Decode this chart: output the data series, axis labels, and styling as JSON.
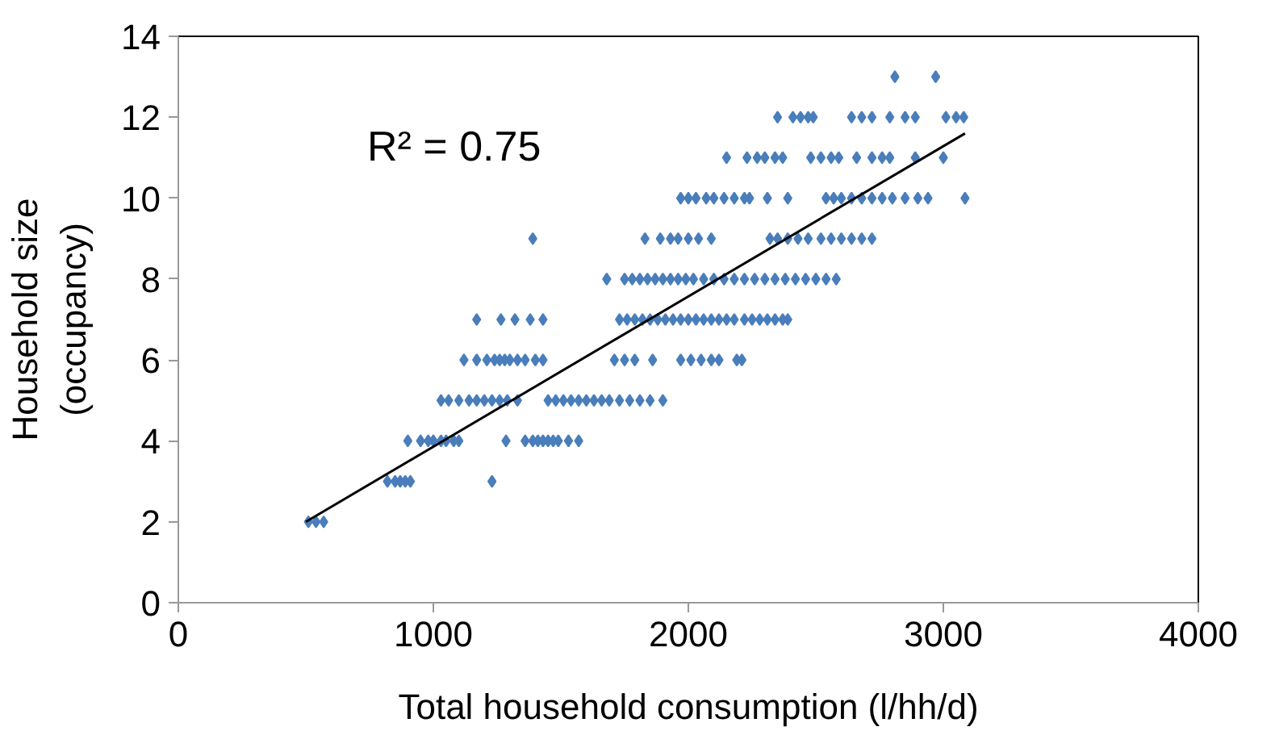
{
  "chart_data": {
    "type": "scatter",
    "xlabel": "Total household consumption (l/hh/d)",
    "ylabel": "Household size\n(occupancy)",
    "xlim": [
      0,
      4000
    ],
    "xticks": [
      0,
      1000,
      2000,
      3000,
      4000
    ],
    "ylim": [
      0,
      14
    ],
    "yticks": [
      0,
      2,
      4,
      6,
      8,
      10,
      12,
      14
    ],
    "grid": false,
    "annotations": [
      "R² = 0.75"
    ],
    "series": [
      {
        "color": "#4a7ebb",
        "marker": "diamond",
        "x": [
          510,
          540,
          570,
          820,
          850,
          870,
          890,
          910,
          1230,
          900,
          950,
          980,
          1000,
          1030,
          1050,
          1080,
          1100,
          1285,
          1360,
          1390,
          1410,
          1430,
          1450,
          1470,
          1490,
          1530,
          1570,
          1030,
          1060,
          1100,
          1140,
          1170,
          1200,
          1230,
          1260,
          1290,
          1330,
          1450,
          1480,
          1510,
          1540,
          1570,
          1600,
          1630,
          1660,
          1690,
          1730,
          1770,
          1810,
          1850,
          1900,
          1120,
          1170,
          1210,
          1240,
          1260,
          1280,
          1300,
          1330,
          1360,
          1400,
          1430,
          1710,
          1750,
          1790,
          1860,
          1970,
          2010,
          2050,
          2090,
          2120,
          2190,
          2210,
          1170,
          1265,
          1320,
          1380,
          1430,
          1730,
          1760,
          1790,
          1820,
          1850,
          1880,
          1910,
          1940,
          1970,
          2000,
          2030,
          2060,
          2090,
          2120,
          2150,
          2180,
          2220,
          2250,
          2280,
          2310,
          2340,
          2370,
          2390,
          1680,
          1750,
          1780,
          1810,
          1840,
          1870,
          1900,
          1930,
          1960,
          1990,
          2020,
          2060,
          2100,
          2140,
          2180,
          2220,
          2260,
          2300,
          2340,
          2380,
          2420,
          2460,
          2500,
          2540,
          2580,
          1390,
          1830,
          1890,
          1930,
          1960,
          2000,
          2040,
          2090,
          2320,
          2350,
          2390,
          2430,
          2470,
          2520,
          2560,
          2600,
          2640,
          2680,
          2720,
          1970,
          2000,
          2030,
          2070,
          2100,
          2140,
          2180,
          2220,
          2240,
          2310,
          2390,
          2540,
          2570,
          2600,
          2640,
          2680,
          2720,
          2760,
          2800,
          2850,
          2900,
          2940,
          3085,
          2150,
          2230,
          2270,
          2300,
          2340,
          2370,
          2480,
          2520,
          2560,
          2590,
          2660,
          2720,
          2760,
          2790,
          2890,
          3000,
          2350,
          2410,
          2440,
          2470,
          2490,
          2640,
          2680,
          2720,
          2790,
          2850,
          2890,
          3010,
          3050,
          3080,
          2810,
          2970
        ],
        "values": [
          2,
          2,
          2,
          3,
          3,
          3,
          3,
          3,
          3,
          4,
          4,
          4,
          4,
          4,
          4,
          4,
          4,
          4,
          4,
          4,
          4,
          4,
          4,
          4,
          4,
          4,
          4,
          5,
          5,
          5,
          5,
          5,
          5,
          5,
          5,
          5,
          5,
          5,
          5,
          5,
          5,
          5,
          5,
          5,
          5,
          5,
          5,
          5,
          5,
          5,
          5,
          6,
          6,
          6,
          6,
          6,
          6,
          6,
          6,
          6,
          6,
          6,
          6,
          6,
          6,
          6,
          6,
          6,
          6,
          6,
          6,
          6,
          6,
          7,
          7,
          7,
          7,
          7,
          7,
          7,
          7,
          7,
          7,
          7,
          7,
          7,
          7,
          7,
          7,
          7,
          7,
          7,
          7,
          7,
          7,
          7,
          7,
          7,
          7,
          7,
          7,
          8,
          8,
          8,
          8,
          8,
          8,
          8,
          8,
          8,
          8,
          8,
          8,
          8,
          8,
          8,
          8,
          8,
          8,
          8,
          8,
          8,
          8,
          8,
          8,
          8,
          9,
          9,
          9,
          9,
          9,
          9,
          9,
          9,
          9,
          9,
          9,
          9,
          9,
          9,
          9,
          9,
          9,
          9,
          9,
          10,
          10,
          10,
          10,
          10,
          10,
          10,
          10,
          10,
          10,
          10,
          10,
          10,
          10,
          10,
          10,
          10,
          10,
          10,
          10,
          10,
          10,
          10,
          11,
          11,
          11,
          11,
          11,
          11,
          11,
          11,
          11,
          11,
          11,
          11,
          11,
          11,
          11,
          11,
          12,
          12,
          12,
          12,
          12,
          12,
          12,
          12,
          12,
          12,
          12,
          12,
          12,
          12,
          13,
          13
        ]
      },
      {
        "type": "line",
        "marker": "none",
        "color": "#000000",
        "x": [
          500,
          3085
        ],
        "values": [
          2.0,
          11.6
        ]
      }
    ]
  }
}
